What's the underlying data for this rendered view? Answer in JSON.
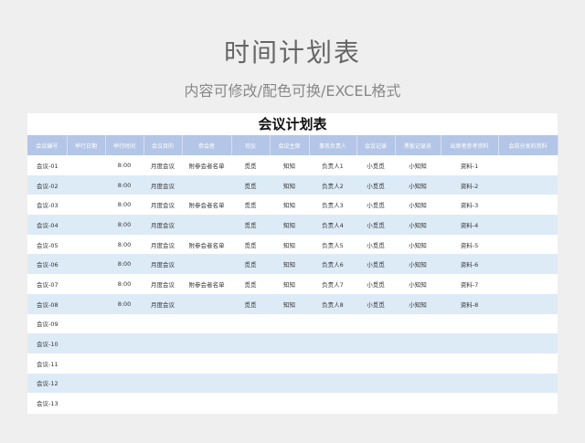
{
  "title": "时间计划表",
  "subtitle": "内容可修改/配色可换/EXCEL格式",
  "sheet_title": "会议计划表",
  "headers": [
    "会议编号",
    "举行日期",
    "举行时间",
    "会议目的",
    "参会者",
    "司仪",
    "会议主席",
    "事务负责人",
    "会议记录",
    "黑板记录员",
    "出席者参考资料",
    "会前分发的资料"
  ],
  "rows": [
    [
      "会议-01",
      "",
      "8:00",
      "月度会议",
      "附参会者名单",
      "觅觅",
      "知知",
      "负责人1",
      "小觅觅",
      "小知知",
      "资料-1",
      ""
    ],
    [
      "会议-02",
      "",
      "8:00",
      "月度会议",
      "",
      "觅觅",
      "知知",
      "负责人2",
      "小觅觅",
      "小知知",
      "资料-2",
      ""
    ],
    [
      "会议-03",
      "",
      "8:00",
      "月度会议",
      "附参会者名单",
      "觅觅",
      "知知",
      "负责人3",
      "小觅觅",
      "小知知",
      "资料-3",
      ""
    ],
    [
      "会议-04",
      "",
      "8:00",
      "月度会议",
      "",
      "觅觅",
      "知知",
      "负责人4",
      "小觅觅",
      "小知知",
      "资料-4",
      ""
    ],
    [
      "会议-05",
      "",
      "8:00",
      "月度会议",
      "附参会者名单",
      "觅觅",
      "知知",
      "负责人5",
      "小觅觅",
      "小知知",
      "资料-5",
      ""
    ],
    [
      "会议-06",
      "",
      "8:00",
      "月度会议",
      "",
      "觅觅",
      "知知",
      "负责人6",
      "小觅觅",
      "小知知",
      "资料-6",
      ""
    ],
    [
      "会议-07",
      "",
      "8:00",
      "月度会议",
      "附参会者名单",
      "觅觅",
      "知知",
      "负责人7",
      "小觅觅",
      "小知知",
      "资料-7",
      ""
    ],
    [
      "会议-08",
      "",
      "8:00",
      "月度会议",
      "",
      "觅觅",
      "知知",
      "负责人8",
      "小觅觅",
      "小知知",
      "资料-8",
      ""
    ],
    [
      "会议-09",
      "",
      "",
      "",
      "",
      "",
      "",
      "",
      "",
      "",
      "",
      ""
    ],
    [
      "会议-10",
      "",
      "",
      "",
      "",
      "",
      "",
      "",
      "",
      "",
      "",
      ""
    ],
    [
      "会议-11",
      "",
      "",
      "",
      "",
      "",
      "",
      "",
      "",
      "",
      "",
      ""
    ],
    [
      "会议-12",
      "",
      "",
      "",
      "",
      "",
      "",
      "",
      "",
      "",
      "",
      ""
    ],
    [
      "会议-13",
      "",
      "",
      "",
      "",
      "",
      "",
      "",
      "",
      "",
      "",
      ""
    ]
  ]
}
